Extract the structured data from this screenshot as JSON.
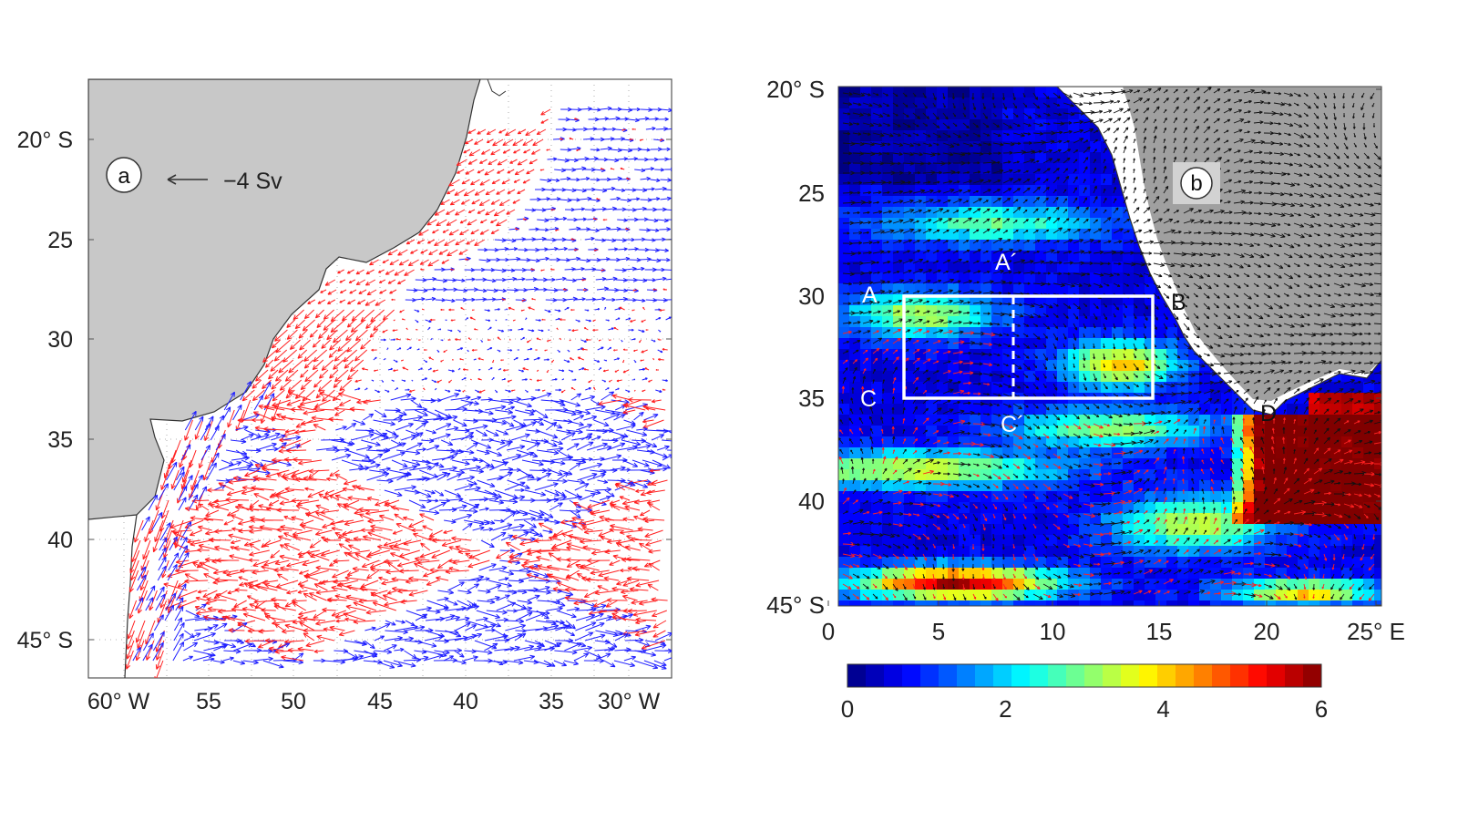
{
  "panel_a": {
    "label": "a",
    "reference_vector_label": "−4 Sv",
    "lat_ticks": [
      "20° S",
      "25",
      "30",
      "35",
      "40",
      "45° S"
    ],
    "lon_ticks": [
      "60° W",
      "55",
      "50",
      "45",
      "40",
      "35",
      "30° W"
    ],
    "colors": {
      "positive_vectors": "#ff2020",
      "negative_vectors": "#2020ff",
      "land": "#c8c8c8",
      "coast": "#333333"
    }
  },
  "panel_b": {
    "label": "b",
    "lat_ticks": [
      "20° S",
      "25",
      "30",
      "35",
      "40",
      "45° S"
    ],
    "lon_ticks": [
      "0",
      "5",
      "10",
      "15",
      "20",
      "25° E"
    ],
    "section_labels": {
      "A": "A",
      "A_prime": "A´",
      "B": "B",
      "C": "C",
      "C_prime": "C´",
      "D": "D"
    },
    "colorbar": {
      "ticks": [
        "0",
        "2",
        "4",
        "6"
      ],
      "min": 0,
      "max": 6,
      "colormap": "jet"
    },
    "colors": {
      "land": "#a0a0a0",
      "box": "#ffffff",
      "vectors_black": "#111111",
      "vectors_red": "#ff2020"
    }
  }
}
